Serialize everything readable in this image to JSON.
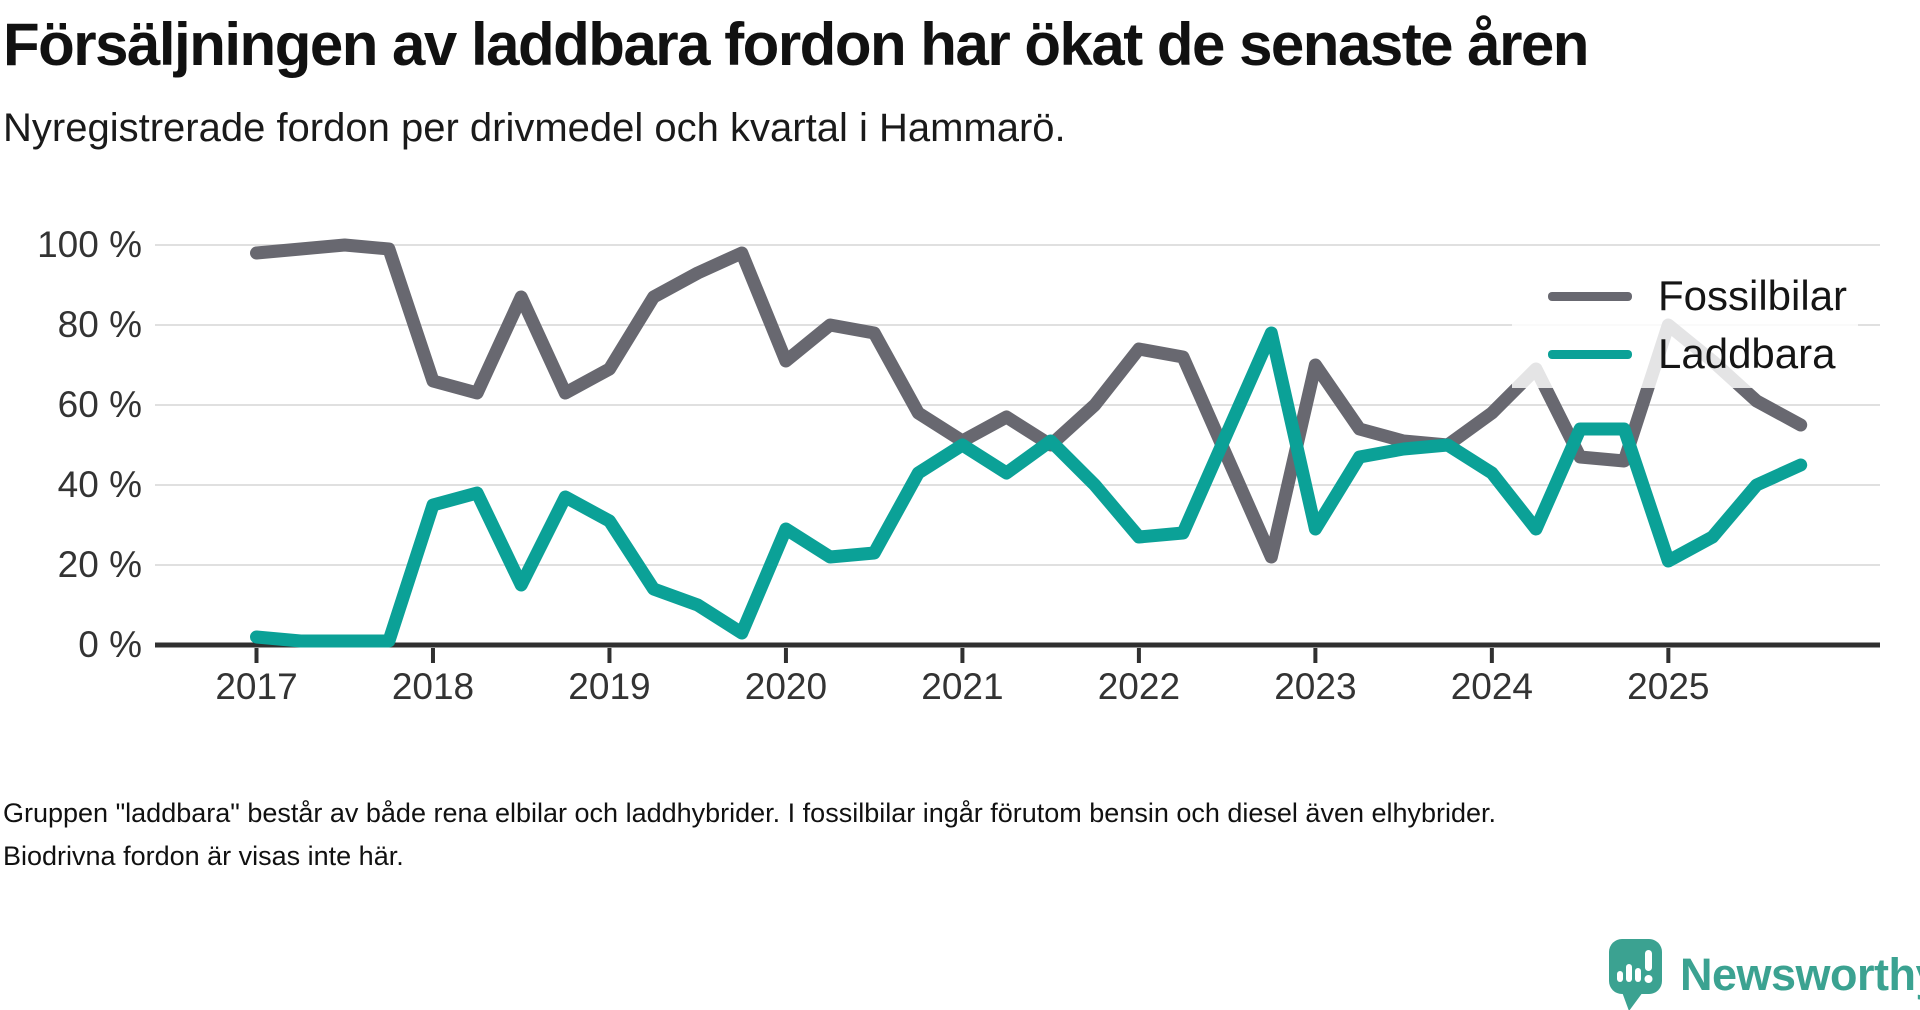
{
  "header": {
    "title": "Försäljningen av laddbara fordon har ökat de senaste åren",
    "subtitle": "Nyregistrerade fordon per drivmedel och kvartal i Hammarö."
  },
  "footer": {
    "note": "Gruppen \"laddbara\" består av både rena elbilar och laddhybrider. I fossilbilar ingår förutom bensin och diesel även elhybrider. Biodrivna fordon är visas inte här."
  },
  "legend": {
    "items": [
      {
        "label": "Fossilbilar",
        "color": "#686870"
      },
      {
        "label": "Laddbara",
        "color": "#0ba197"
      }
    ]
  },
  "logo": {
    "name": "Newsworthy",
    "color": "#3ba291",
    "icon": "speech-bubble-bar-chart-icon"
  },
  "chart_data": {
    "type": "line",
    "title": "Försäljningen av laddbara fordon har ökat de senaste åren",
    "subtitle": "Nyregistrerade fordon per drivmedel och kvartal i Hammarö.",
    "x_unit": "quarter",
    "x": [
      "2017 Q1",
      "2017 Q2",
      "2017 Q3",
      "2017 Q4",
      "2018 Q1",
      "2018 Q2",
      "2018 Q3",
      "2018 Q4",
      "2019 Q1",
      "2019 Q2",
      "2019 Q3",
      "2019 Q4",
      "2020 Q1",
      "2020 Q2",
      "2020 Q3",
      "2020 Q4",
      "2021 Q1",
      "2021 Q2",
      "2021 Q3",
      "2021 Q4",
      "2022 Q1",
      "2022 Q2",
      "2022 Q3",
      "2022 Q4",
      "2023 Q1",
      "2023 Q2",
      "2023 Q3",
      "2023 Q4",
      "2024 Q1",
      "2024 Q2",
      "2024 Q3",
      "2024 Q4",
      "2025 Q1",
      "2025 Q2",
      "2025 Q3",
      "2025 Q4"
    ],
    "x_tick_labels": [
      "2017",
      "2018",
      "2019",
      "2020",
      "2021",
      "2022",
      "2023",
      "2024",
      "2025"
    ],
    "y_tick_labels": [
      "0 %",
      "20 %",
      "40 %",
      "60 %",
      "80 %",
      "100 %"
    ],
    "ylim": [
      0,
      100
    ],
    "grid": "horizontal",
    "grid_color": "#e0e0e0",
    "axis_color": "#303030",
    "legend_position": "top-right",
    "series": [
      {
        "name": "Fossilbilar",
        "color": "#686870",
        "values": [
          98,
          99,
          100,
          99,
          66,
          63,
          87,
          63,
          69,
          87,
          93,
          98,
          71,
          80,
          78,
          58,
          51,
          57,
          50,
          60,
          74,
          72,
          47,
          22,
          70,
          54,
          51,
          50,
          58,
          69,
          47,
          46,
          80,
          71,
          61,
          55
        ]
      },
      {
        "name": "Laddbara",
        "color": "#0ba197",
        "values": [
          2,
          1,
          1,
          1,
          35,
          38,
          15,
          37,
          31,
          14,
          10,
          3,
          29,
          22,
          23,
          43,
          50,
          43,
          51,
          40,
          27,
          28,
          53,
          78,
          29,
          47,
          49,
          50,
          43,
          29,
          54,
          54,
          21,
          27,
          40,
          45
        ]
      }
    ]
  }
}
